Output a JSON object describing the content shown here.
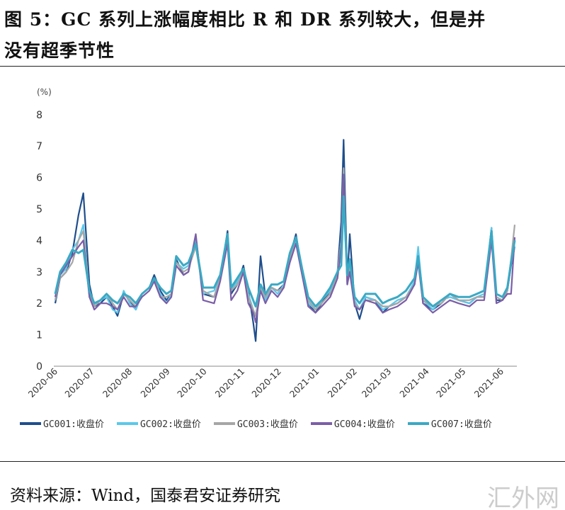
{
  "title_line1": "图 5：GC 系列上涨幅度相比 R 和 DR 系列较大，但是并",
  "title_line2": "没有超季节性",
  "source": "资料来源：Wind，国泰君安证券研究",
  "watermark": "汇外网",
  "chart_data": {
    "type": "line",
    "ylabel": "(%)",
    "ylim": [
      0,
      8
    ],
    "yticks": [
      "0",
      "1",
      "2",
      "3",
      "4",
      "5",
      "6",
      "7",
      "8"
    ],
    "xticks": [
      "2020-06",
      "2020-07",
      "2020-08",
      "2020-09",
      "2020-10",
      "2020-11",
      "2020-12",
      "2021-01",
      "2021-02",
      "2021-03",
      "2021-04",
      "2021-05",
      "2021-06"
    ],
    "grid": false,
    "legend_position": "bottom",
    "x": [
      "2020-06-01",
      "2020-06-05",
      "2020-06-10",
      "2020-06-15",
      "2020-06-20",
      "2020-06-24",
      "2020-06-29",
      "2020-07-03",
      "2020-07-08",
      "2020-07-13",
      "2020-07-18",
      "2020-07-22",
      "2020-07-27",
      "2020-08-01",
      "2020-08-06",
      "2020-08-11",
      "2020-08-17",
      "2020-08-21",
      "2020-08-26",
      "2020-08-31",
      "2020-09-04",
      "2020-09-08",
      "2020-09-14",
      "2020-09-18",
      "2020-09-24",
      "2020-09-30",
      "2020-10-09",
      "2020-10-14",
      "2020-10-20",
      "2020-10-23",
      "2020-10-28",
      "2020-11-02",
      "2020-11-06",
      "2020-11-10",
      "2020-11-12",
      "2020-11-16",
      "2020-11-20",
      "2020-11-25",
      "2020-11-30",
      "2020-12-05",
      "2020-12-10",
      "2020-12-15",
      "2020-12-20",
      "2020-12-25",
      "2020-12-31",
      "2021-01-05",
      "2021-01-12",
      "2021-01-18",
      "2021-01-21",
      "2021-01-23",
      "2021-01-26",
      "2021-01-28",
      "2021-02-01",
      "2021-02-05",
      "2021-02-10",
      "2021-02-18",
      "2021-02-24",
      "2021-03-01",
      "2021-03-08",
      "2021-03-15",
      "2021-03-22",
      "2021-03-25",
      "2021-03-29",
      "2021-04-06",
      "2021-04-13",
      "2021-04-20",
      "2021-04-27",
      "2021-05-06",
      "2021-05-12",
      "2021-05-18",
      "2021-05-24",
      "2021-05-28",
      "2021-06-02",
      "2021-06-06",
      "2021-06-09",
      "2021-06-12"
    ],
    "series": [
      {
        "name": "GC001:收盘价",
        "color": "#1f4e8c",
        "values": [
          2.0,
          2.8,
          3.0,
          3.6,
          4.8,
          5.5,
          2.6,
          1.9,
          2.0,
          2.2,
          1.9,
          1.6,
          2.3,
          2.1,
          1.8,
          2.3,
          2.5,
          2.9,
          2.4,
          2.1,
          2.3,
          3.4,
          2.9,
          3.0,
          4.1,
          2.3,
          2.2,
          2.8,
          4.3,
          2.3,
          2.6,
          3.2,
          2.4,
          1.4,
          0.8,
          3.5,
          2.2,
          2.5,
          2.4,
          2.6,
          3.5,
          4.2,
          3.0,
          2.0,
          1.7,
          2.0,
          2.4,
          3.0,
          4.6,
          7.2,
          2.7,
          4.2,
          2.0,
          1.5,
          2.2,
          2.1,
          1.7,
          1.9,
          2.0,
          2.2,
          2.6,
          3.5,
          2.0,
          1.8,
          2.0,
          2.3,
          2.1,
          2.0,
          2.2,
          2.2,
          4.4,
          2.1,
          2.1,
          2.4,
          3.2,
          3.8
        ]
      },
      {
        "name": "GC002:收盘价",
        "color": "#5bc8ea",
        "values": [
          2.1,
          2.9,
          3.1,
          3.7,
          4.0,
          4.5,
          2.2,
          1.9,
          2.1,
          2.2,
          1.8,
          1.7,
          2.4,
          2.0,
          1.8,
          2.3,
          2.5,
          2.8,
          2.3,
          2.0,
          2.3,
          3.3,
          3.1,
          3.2,
          4.0,
          2.3,
          2.4,
          2.9,
          4.1,
          2.4,
          2.7,
          3.1,
          2.3,
          1.8,
          1.6,
          2.6,
          2.1,
          2.5,
          2.3,
          2.6,
          3.5,
          4.0,
          3.0,
          2.0,
          1.8,
          2.1,
          2.4,
          3.0,
          4.0,
          5.5,
          2.6,
          3.2,
          2.1,
          1.8,
          2.2,
          2.1,
          1.8,
          1.9,
          2.1,
          2.2,
          2.7,
          3.8,
          2.1,
          1.8,
          2.1,
          2.2,
          2.1,
          2.0,
          2.2,
          2.3,
          4.4,
          2.2,
          2.1,
          2.4,
          3.3,
          3.8
        ]
      },
      {
        "name": "GC003:收盘价",
        "color": "#a6a6a6",
        "values": [
          2.1,
          2.8,
          3.0,
          3.3,
          4.0,
          4.3,
          2.3,
          1.9,
          2.1,
          2.3,
          2.0,
          1.8,
          2.3,
          2.1,
          1.9,
          2.3,
          2.5,
          2.8,
          2.2,
          2.2,
          2.3,
          3.3,
          3.0,
          3.1,
          3.8,
          2.4,
          2.2,
          2.8,
          4.0,
          2.4,
          2.6,
          3.0,
          2.2,
          1.8,
          1.6,
          2.5,
          2.2,
          2.5,
          2.4,
          2.5,
          3.4,
          4.1,
          3.0,
          2.1,
          1.8,
          2.0,
          2.3,
          2.9,
          4.0,
          6.3,
          2.6,
          3.2,
          2.0,
          1.8,
          2.1,
          2.1,
          1.9,
          1.9,
          2.0,
          2.2,
          2.6,
          3.5,
          2.1,
          1.9,
          2.0,
          2.3,
          2.1,
          2.1,
          2.2,
          2.2,
          4.2,
          2.2,
          2.1,
          2.4,
          3.4,
          4.5
        ]
      },
      {
        "name": "GC004:收盘价",
        "color": "#7b5ea7",
        "values": [
          2.2,
          2.9,
          3.2,
          3.5,
          3.8,
          4.0,
          2.2,
          1.8,
          2.0,
          2.0,
          1.9,
          1.8,
          2.2,
          1.9,
          1.9,
          2.2,
          2.4,
          2.7,
          2.2,
          2.0,
          2.2,
          3.2,
          2.9,
          3.0,
          4.2,
          2.1,
          2.0,
          2.7,
          3.9,
          2.1,
          2.4,
          3.0,
          2.0,
          1.7,
          1.4,
          2.4,
          2.0,
          2.4,
          2.2,
          2.5,
          3.3,
          3.9,
          2.9,
          1.9,
          1.7,
          1.9,
          2.2,
          2.8,
          3.8,
          6.1,
          2.6,
          3.0,
          1.9,
          1.8,
          2.1,
          2.0,
          1.7,
          1.8,
          1.9,
          2.1,
          2.6,
          3.3,
          2.0,
          1.7,
          1.9,
          2.1,
          2.0,
          1.9,
          2.1,
          2.1,
          4.0,
          2.0,
          2.1,
          2.3,
          2.3,
          4.1
        ]
      },
      {
        "name": "GC007:收盘价",
        "color": "#3ba9c4",
        "values": [
          2.3,
          3.0,
          3.3,
          3.7,
          3.6,
          3.7,
          2.4,
          2.0,
          2.1,
          2.3,
          2.1,
          2.0,
          2.3,
          2.2,
          2.0,
          2.3,
          2.5,
          2.8,
          2.5,
          2.3,
          2.4,
          3.5,
          3.2,
          3.3,
          3.9,
          2.5,
          2.5,
          2.9,
          4.2,
          2.5,
          2.8,
          3.1,
          2.5,
          2.1,
          1.9,
          2.6,
          2.3,
          2.6,
          2.6,
          2.7,
          3.6,
          4.1,
          3.1,
          2.2,
          1.9,
          2.1,
          2.5,
          3.0,
          3.2,
          5.4,
          2.9,
          3.4,
          2.2,
          2.0,
          2.3,
          2.3,
          2.0,
          2.1,
          2.2,
          2.4,
          2.8,
          3.5,
          2.2,
          1.9,
          2.1,
          2.3,
          2.2,
          2.2,
          2.3,
          2.4,
          4.3,
          2.3,
          2.2,
          2.5,
          3.3,
          4.0
        ]
      }
    ]
  }
}
